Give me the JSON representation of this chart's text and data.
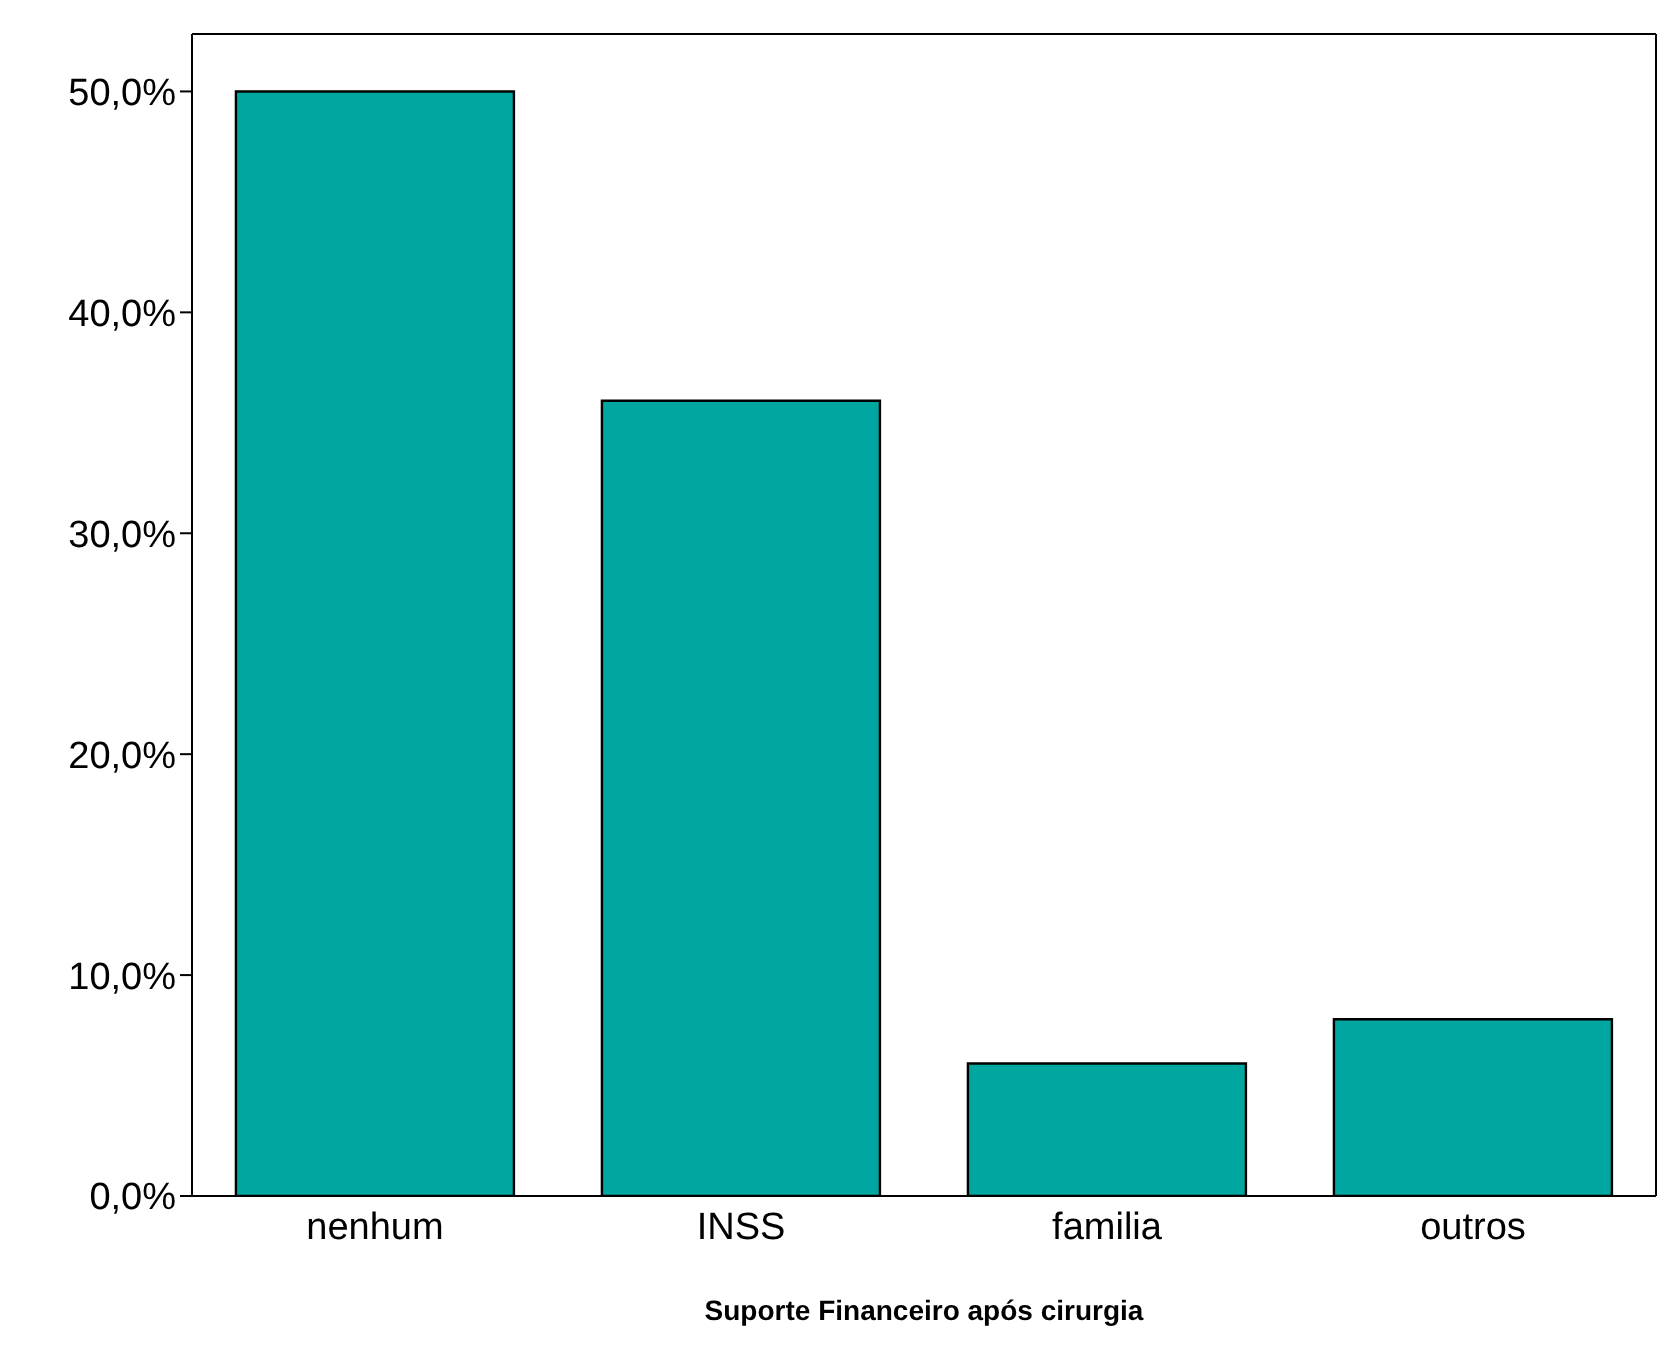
{
  "chart_data": {
    "type": "bar",
    "xlabel": "Suporte Financeiro após cirurgia",
    "categories": [
      "nenhum",
      "INSS",
      "familia",
      "outros"
    ],
    "values": [
      50,
      36,
      6,
      8
    ],
    "color": "#00a6a0",
    "ylim": [
      0,
      52.6
    ],
    "yticks": [
      {
        "value": 0,
        "label": "0,0%"
      },
      {
        "value": 10,
        "label": "10,0%"
      },
      {
        "value": 20,
        "label": "20,0%"
      },
      {
        "value": 30,
        "label": "30,0%"
      },
      {
        "value": 40,
        "label": "40,0%"
      },
      {
        "value": 50,
        "label": "50,0%"
      }
    ],
    "grid": false,
    "legend": false
  }
}
